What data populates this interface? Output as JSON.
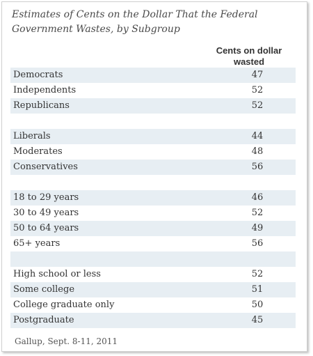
{
  "chart_data": {
    "type": "table",
    "title": "Estimates of Cents on the Dollar That the Federal Government Wastes, by Subgroup",
    "column_header": "Cents on dollar wasted",
    "groups": [
      {
        "rows": [
          {
            "label": "Democrats",
            "value": 47
          },
          {
            "label": "Independents",
            "value": 52
          },
          {
            "label": "Republicans",
            "value": 52
          }
        ]
      },
      {
        "rows": [
          {
            "label": "Liberals",
            "value": 44
          },
          {
            "label": "Moderates",
            "value": 48
          },
          {
            "label": "Conservatives",
            "value": 56
          }
        ]
      },
      {
        "rows": [
          {
            "label": "18 to 29 years",
            "value": 46
          },
          {
            "label": "30 to 49 years",
            "value": 52
          },
          {
            "label": "50 to 64 years",
            "value": 49
          },
          {
            "label": "65+ years",
            "value": 56
          }
        ]
      },
      {
        "rows": [
          {
            "label": "High school or less",
            "value": 52
          },
          {
            "label": "Some college",
            "value": 51
          },
          {
            "label": "College graduate only",
            "value": 50
          },
          {
            "label": "Postgraduate",
            "value": 45
          }
        ]
      }
    ],
    "source": "Gallup, Sept. 8-11, 2011"
  },
  "colors": {
    "row_shade": "#e7eef3",
    "text": "#333333"
  }
}
